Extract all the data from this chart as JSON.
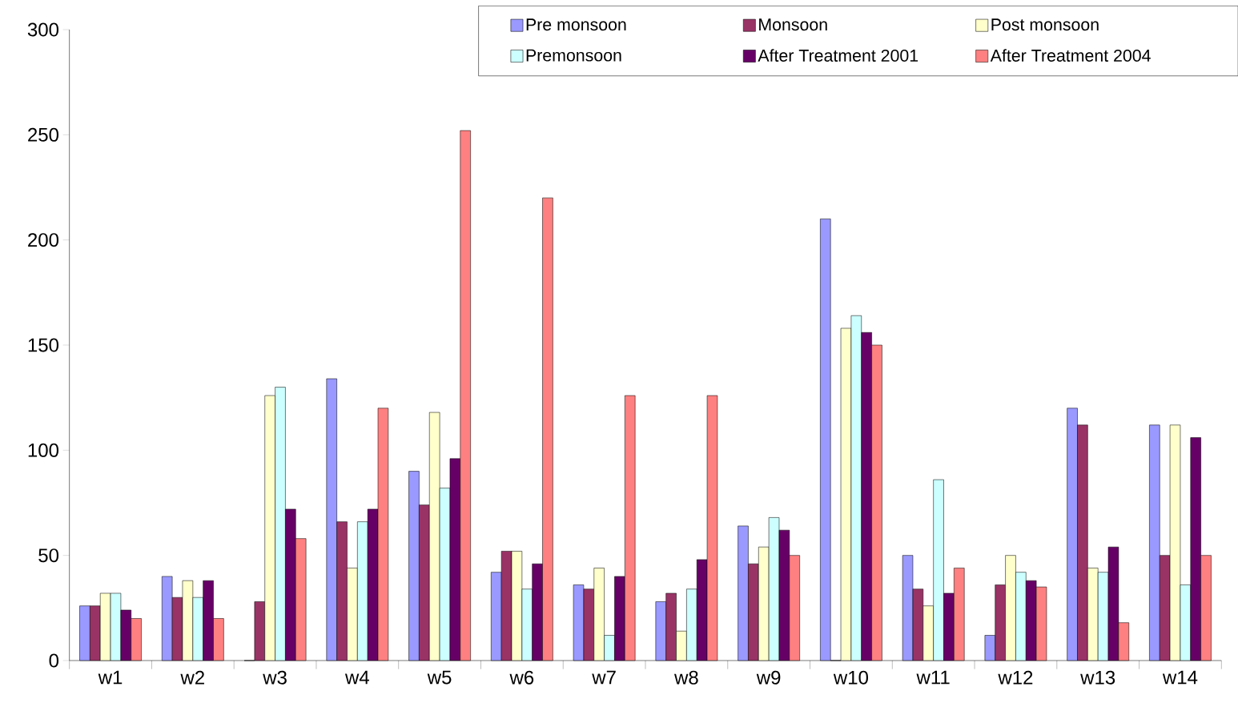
{
  "chart_data": {
    "type": "bar",
    "categories": [
      "w1",
      "w2",
      "w3",
      "w4",
      "w5",
      "w6",
      "w7",
      "w8",
      "w9",
      "w10",
      "w11",
      "w12",
      "w13",
      "w14"
    ],
    "series": [
      {
        "name": "Pre monsoon",
        "color": "#9999ff",
        "values": [
          26,
          40,
          0,
          134,
          90,
          42,
          36,
          28,
          64,
          210,
          50,
          12,
          120,
          112
        ]
      },
      {
        "name": "Monsoon",
        "color": "#993366",
        "values": [
          26,
          30,
          28,
          66,
          74,
          52,
          34,
          32,
          46,
          0,
          34,
          36,
          112,
          50
        ]
      },
      {
        "name": "Post monsoon",
        "color": "#ffffcc",
        "values": [
          32,
          38,
          126,
          44,
          118,
          52,
          44,
          14,
          54,
          158,
          26,
          50,
          44,
          112
        ]
      },
      {
        "name": "Premonsoon",
        "color": "#ccffff",
        "values": [
          32,
          30,
          130,
          66,
          82,
          34,
          12,
          34,
          68,
          164,
          86,
          42,
          42,
          36
        ]
      },
      {
        "name": "After Treatment 2001",
        "color": "#660066",
        "values": [
          24,
          38,
          72,
          72,
          96,
          46,
          40,
          48,
          62,
          156,
          32,
          38,
          54,
          106
        ]
      },
      {
        "name": "After Treatment 2004",
        "color": "#ff8080",
        "values": [
          20,
          20,
          58,
          120,
          252,
          220,
          126,
          126,
          50,
          150,
          44,
          35,
          18,
          50
        ]
      }
    ],
    "ylim": [
      0,
      300
    ],
    "yticks": [
      0,
      50,
      100,
      150,
      200,
      250,
      300
    ],
    "grid": false,
    "legend": "top right"
  }
}
